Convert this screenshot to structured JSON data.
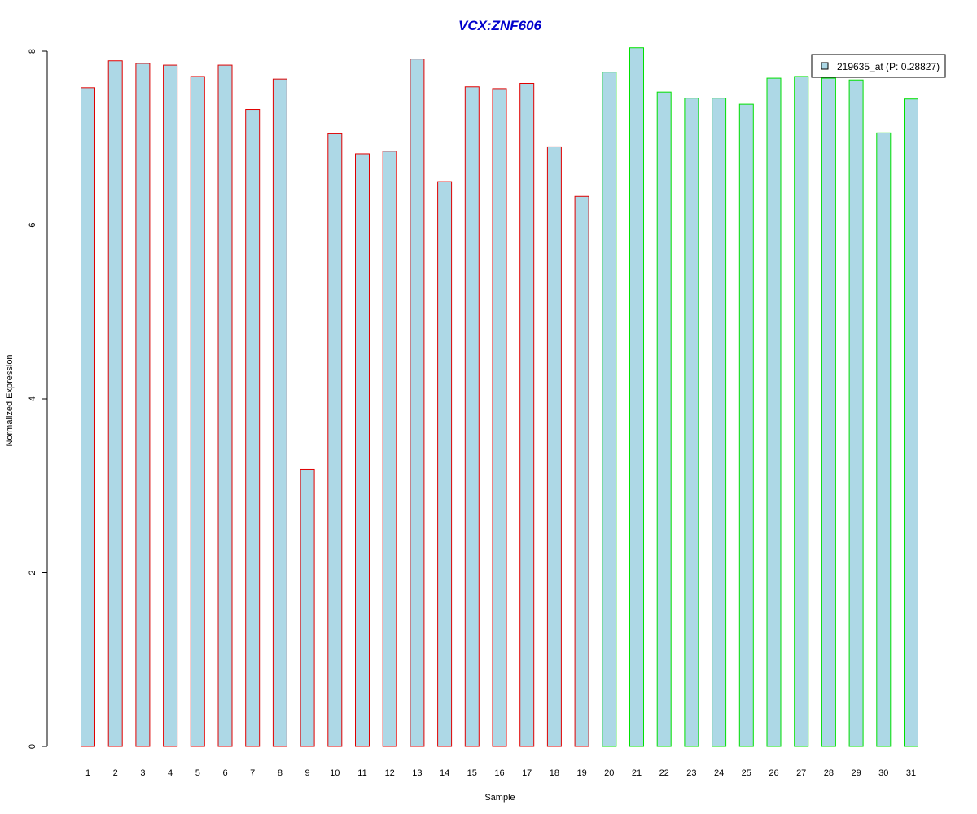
{
  "chart_data": {
    "type": "bar",
    "title": "VCX:ZNF606",
    "xlabel": "Sample",
    "ylabel": "Normalized Expression",
    "ylim": [
      0,
      8
    ],
    "yticks": [
      0,
      2,
      4,
      6,
      8
    ],
    "grid": false,
    "legend_position": "top-right",
    "categories": [
      "1",
      "2",
      "3",
      "4",
      "5",
      "6",
      "7",
      "8",
      "9",
      "10",
      "11",
      "12",
      "13",
      "14",
      "15",
      "16",
      "17",
      "18",
      "19",
      "20",
      "21",
      "22",
      "23",
      "24",
      "25",
      "26",
      "27",
      "28",
      "29",
      "30",
      "31"
    ],
    "series": [
      {
        "name": "219635_at (P: 0.28827)",
        "values": [
          7.58,
          7.89,
          7.86,
          7.84,
          7.71,
          7.84,
          7.33,
          7.68,
          3.19,
          7.05,
          6.82,
          6.85,
          7.91,
          6.5,
          7.59,
          7.57,
          7.63,
          6.9,
          6.33,
          7.76,
          8.04,
          7.53,
          7.46,
          7.46,
          7.39,
          7.69,
          7.71,
          7.69,
          7.67,
          7.06,
          7.45
        ]
      }
    ],
    "groups": [
      {
        "samples": [
          1,
          19
        ],
        "border_color": "#e00000"
      },
      {
        "samples": [
          20,
          31
        ],
        "border_color": "#00e000"
      }
    ],
    "bar_fill_color": "#add8e6",
    "title_color": "#0000cc"
  }
}
